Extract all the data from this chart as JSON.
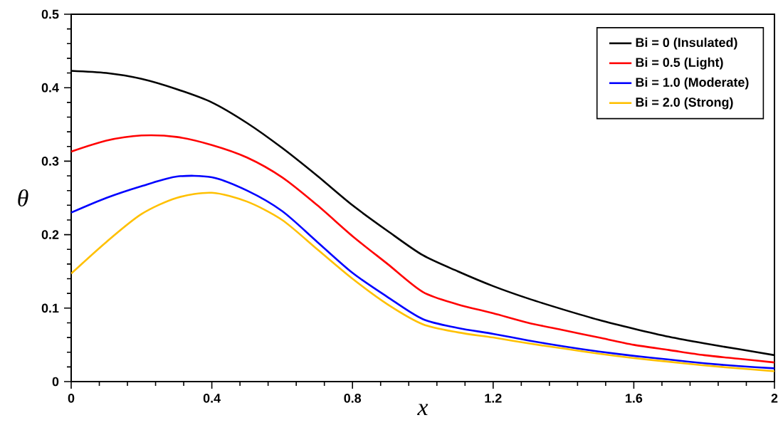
{
  "chart_data": {
    "type": "line",
    "xlabel": "x",
    "ylabel": "θ",
    "xlim": [
      0,
      2
    ],
    "ylim": [
      0,
      0.5
    ],
    "xticks": [
      0,
      0.4,
      0.8,
      1.2,
      1.6,
      2
    ],
    "yticks": [
      0,
      0.1,
      0.2,
      0.3,
      0.4,
      0.5
    ],
    "grid": false,
    "legend": "top right",
    "marker": "none",
    "line_style": "solid",
    "x": [
      0,
      0.1,
      0.2,
      0.3,
      0.4,
      0.5,
      0.6,
      0.7,
      0.8,
      0.9,
      1.0,
      1.1,
      1.2,
      1.3,
      1.4,
      1.5,
      1.6,
      1.7,
      1.8,
      1.9,
      2.0
    ],
    "series": [
      {
        "name": "Bi = 0 (Insulated)",
        "color": "#000000",
        "values": [
          0.423,
          0.42,
          0.412,
          0.398,
          0.38,
          0.352,
          0.318,
          0.28,
          0.24,
          0.205,
          0.172,
          0.15,
          0.13,
          0.113,
          0.098,
          0.084,
          0.072,
          0.061,
          0.052,
          0.044,
          0.036
        ]
      },
      {
        "name": "Bi = 0.5 (Light)",
        "color": "#ff0000",
        "values": [
          0.313,
          0.328,
          0.335,
          0.333,
          0.322,
          0.305,
          0.278,
          0.24,
          0.198,
          0.16,
          0.122,
          0.105,
          0.093,
          0.08,
          0.07,
          0.06,
          0.05,
          0.043,
          0.036,
          0.031,
          0.026
        ]
      },
      {
        "name": "Bi = 1.0 (Moderate)",
        "color": "#0000ff",
        "values": [
          0.23,
          0.25,
          0.266,
          0.279,
          0.278,
          0.26,
          0.232,
          0.19,
          0.148,
          0.115,
          0.085,
          0.073,
          0.065,
          0.056,
          0.048,
          0.041,
          0.035,
          0.03,
          0.025,
          0.021,
          0.018
        ]
      },
      {
        "name": "Bi = 2.0 (Strong)",
        "color": "#ffc000",
        "values": [
          0.147,
          0.19,
          0.228,
          0.25,
          0.257,
          0.245,
          0.22,
          0.18,
          0.14,
          0.105,
          0.078,
          0.067,
          0.06,
          0.052,
          0.045,
          0.038,
          0.032,
          0.027,
          0.022,
          0.018,
          0.014
        ]
      }
    ]
  }
}
